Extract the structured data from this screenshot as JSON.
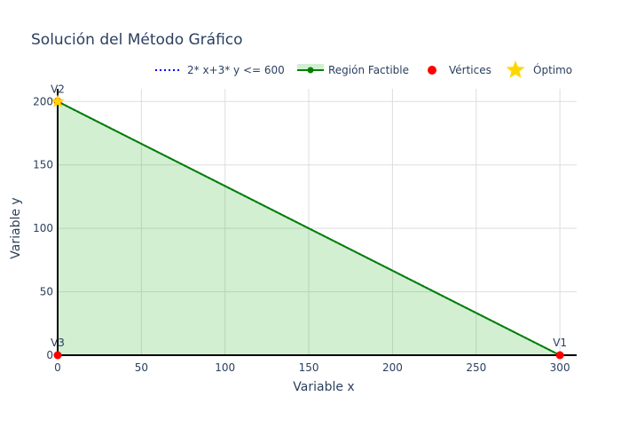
{
  "chart_data": {
    "type": "line",
    "title": "Solución del Método Gráfico",
    "xlabel": "Variable x",
    "ylabel": "Variable y",
    "xlim": [
      0,
      310
    ],
    "ylim": [
      0,
      210
    ],
    "xticks": [
      0,
      50,
      100,
      150,
      200,
      250,
      300
    ],
    "yticks": [
      0,
      50,
      100,
      150,
      200
    ],
    "grid": true,
    "legend_position": "top-right",
    "series": [
      {
        "name": "2* x+3* y <= 600",
        "kind": "line",
        "style": "dotted",
        "color": "#0000ff",
        "x": [
          0,
          300
        ],
        "y": [
          200,
          0
        ]
      },
      {
        "name": "Región Factible",
        "kind": "area",
        "color": "#008000",
        "fill": "rgba(50,180,50,0.22)",
        "x": [
          300,
          0,
          0,
          300
        ],
        "y": [
          0,
          200,
          0,
          0
        ]
      },
      {
        "name": "Vértices",
        "kind": "markers",
        "color": "#ff0000",
        "points": [
          {
            "label": "V1",
            "x": 300,
            "y": 0
          },
          {
            "label": "V2",
            "x": 0,
            "y": 200
          },
          {
            "label": "V3",
            "x": 0,
            "y": 0
          }
        ]
      },
      {
        "name": "Óptimo",
        "kind": "star",
        "color": "#ffd700",
        "x": 0,
        "y": 200
      }
    ]
  }
}
